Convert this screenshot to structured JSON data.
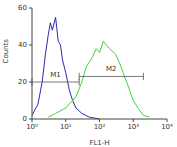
{
  "chart_data": {
    "type": "line",
    "x_label": "FL1-H",
    "y_label": "Counts",
    "log": "x",
    "xlim": [
      1,
      10000
    ],
    "xticks": [
      {
        "value": 1,
        "label": "10⁰"
      },
      {
        "value": 10,
        "label": "10¹"
      },
      {
        "value": 100,
        "label": "10²"
      },
      {
        "value": 1000,
        "label": "10³"
      },
      {
        "value": 10000,
        "label": "10⁴"
      }
    ],
    "ylim": [
      0,
      60
    ],
    "yticks": [
      0,
      20,
      40,
      60
    ],
    "series": [
      {
        "color": "#2a2ab8",
        "x": [
          1,
          1.5,
          2,
          2.5,
          3,
          3.5,
          4,
          5,
          6,
          7,
          8,
          10,
          13,
          16,
          20,
          30,
          50,
          100
        ],
        "values": [
          2,
          8,
          20,
          35,
          45,
          52,
          48,
          55,
          42,
          40,
          32,
          25,
          15,
          10,
          6,
          3,
          1,
          0
        ]
      },
      {
        "color": "#3fd23f",
        "x": [
          3,
          5,
          10,
          20,
          30,
          40,
          60,
          80,
          100,
          130,
          160,
          200,
          300,
          400,
          500,
          700,
          1000,
          1500,
          2000,
          3000
        ],
        "values": [
          1,
          3,
          6,
          12,
          20,
          28,
          33,
          38,
          36,
          42,
          40,
          38,
          35,
          30,
          25,
          18,
          10,
          5,
          2,
          1
        ]
      }
    ],
    "gates": [
      {
        "label": "M1",
        "x": [
          1,
          25
        ],
        "y": 20
      },
      {
        "label": "M2",
        "x": [
          25,
          2000
        ],
        "y": 23
      }
    ]
  }
}
